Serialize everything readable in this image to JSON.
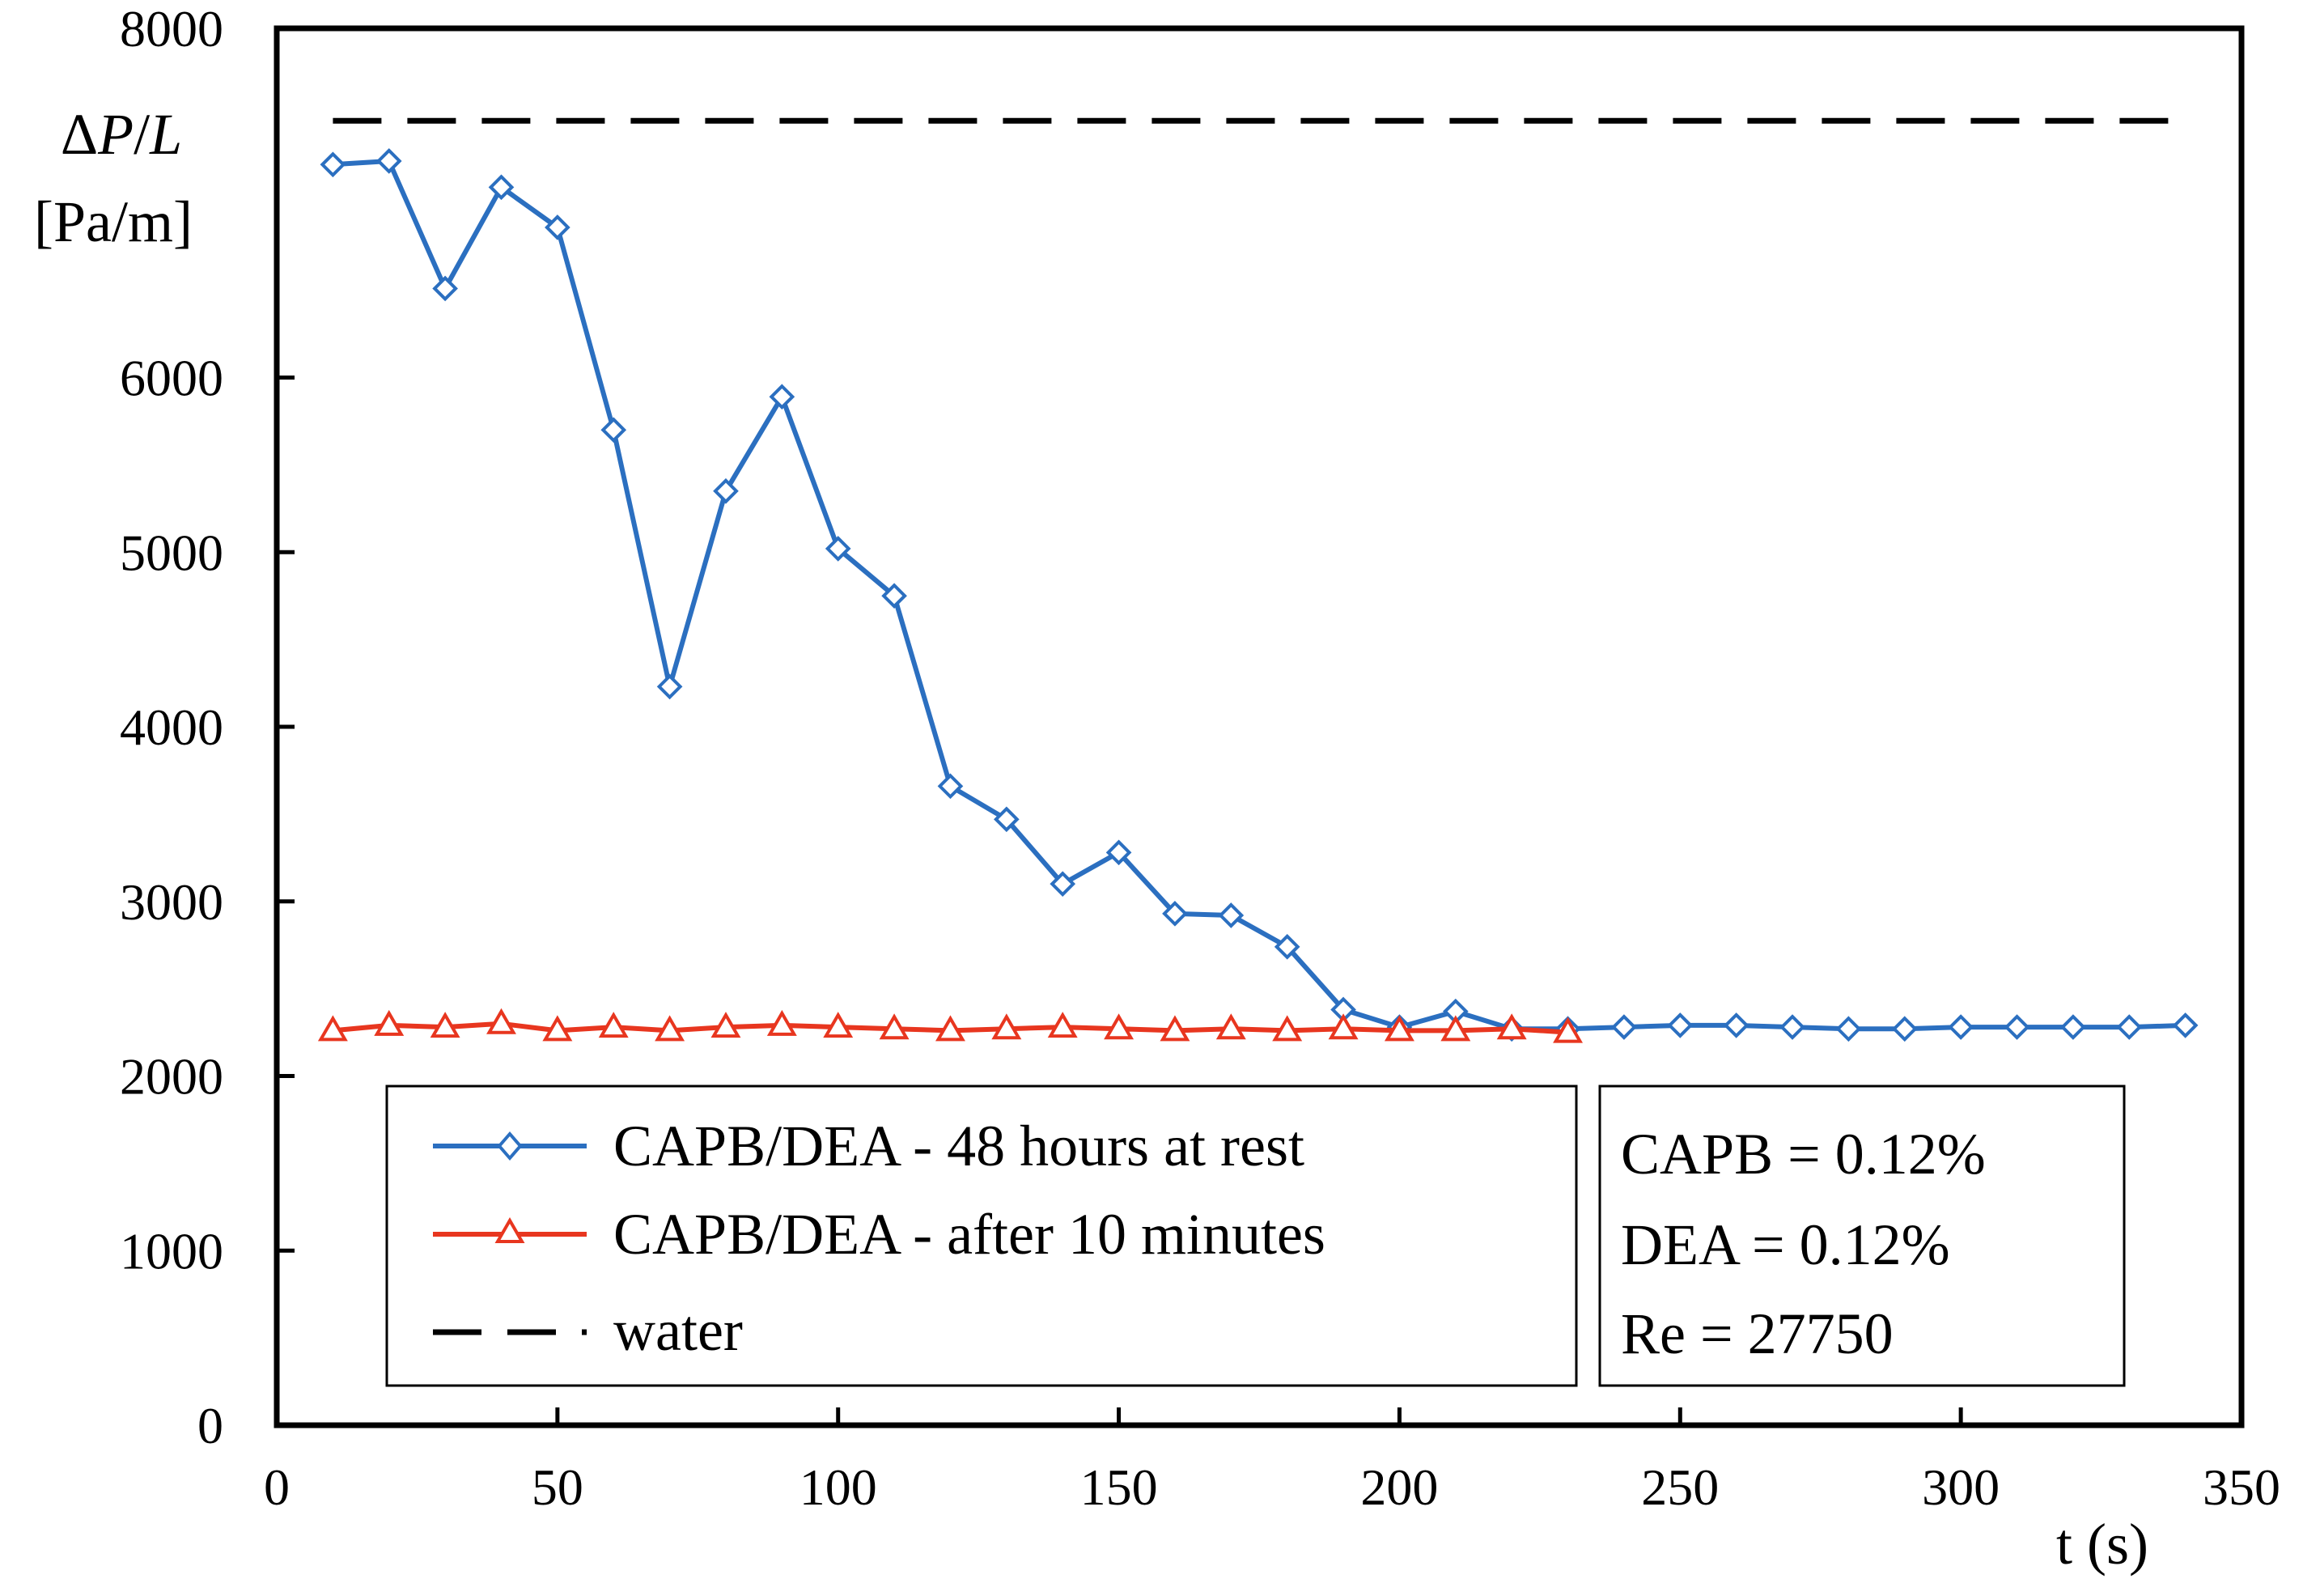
{
  "chart_data": {
    "type": "line",
    "title": "",
    "xlabel": "t (s)",
    "ylabel_lines": [
      "ΔP/L",
      "[Pa/m]"
    ],
    "ylabel_parts": {
      "delta": "Δ",
      "P": "P",
      "slash": "/",
      "L": "L"
    },
    "xlim": [
      0,
      350
    ],
    "ylim": [
      0,
      8000
    ],
    "xticks": [
      0,
      50,
      100,
      150,
      200,
      250,
      300,
      350
    ],
    "yticks": [
      0,
      1000,
      2000,
      3000,
      4000,
      5000,
      6000,
      8000
    ],
    "grid": false,
    "series": [
      {
        "name": "CAPB/DEA - 48 hours at rest",
        "color": "#2b6fc0",
        "marker": "diamond",
        "x": [
          10,
          20,
          30,
          40,
          50,
          60,
          70,
          80,
          90,
          100,
          110,
          120,
          130,
          140,
          150,
          160,
          170,
          180,
          190,
          200,
          210,
          220,
          230,
          240,
          250,
          260,
          270,
          280,
          290,
          300,
          310,
          320,
          330,
          340
        ],
        "y": [
          7220,
          7240,
          6510,
          7090,
          6860,
          5700,
          4230,
          5350,
          5890,
          5020,
          4750,
          3660,
          3470,
          3100,
          3280,
          2930,
          2920,
          2740,
          2380,
          2280,
          2370,
          2270,
          2270,
          2280,
          2290,
          2290,
          2280,
          2270,
          2270,
          2280,
          2280,
          2280,
          2280,
          2290
        ]
      },
      {
        "name": "CAPB/DEA - after 10 minutes",
        "color": "#e8361f",
        "marker": "triangle",
        "x": [
          10,
          20,
          30,
          40,
          50,
          60,
          70,
          80,
          90,
          100,
          110,
          120,
          130,
          140,
          150,
          160,
          170,
          180,
          190,
          200,
          210,
          220,
          230
        ],
        "y": [
          2260,
          2290,
          2280,
          2300,
          2260,
          2280,
          2260,
          2280,
          2290,
          2280,
          2270,
          2260,
          2270,
          2280,
          2270,
          2260,
          2270,
          2260,
          2270,
          2260,
          2260,
          2270,
          2250
        ]
      },
      {
        "name": "water",
        "color": "#000000",
        "style": "dashed",
        "x": [
          10,
          340
        ],
        "y": [
          7470,
          7470
        ]
      }
    ],
    "annotation": {
      "lines": [
        "CAPB = 0.12%",
        "DEA = 0.12%",
        "Re = 27750"
      ]
    }
  }
}
